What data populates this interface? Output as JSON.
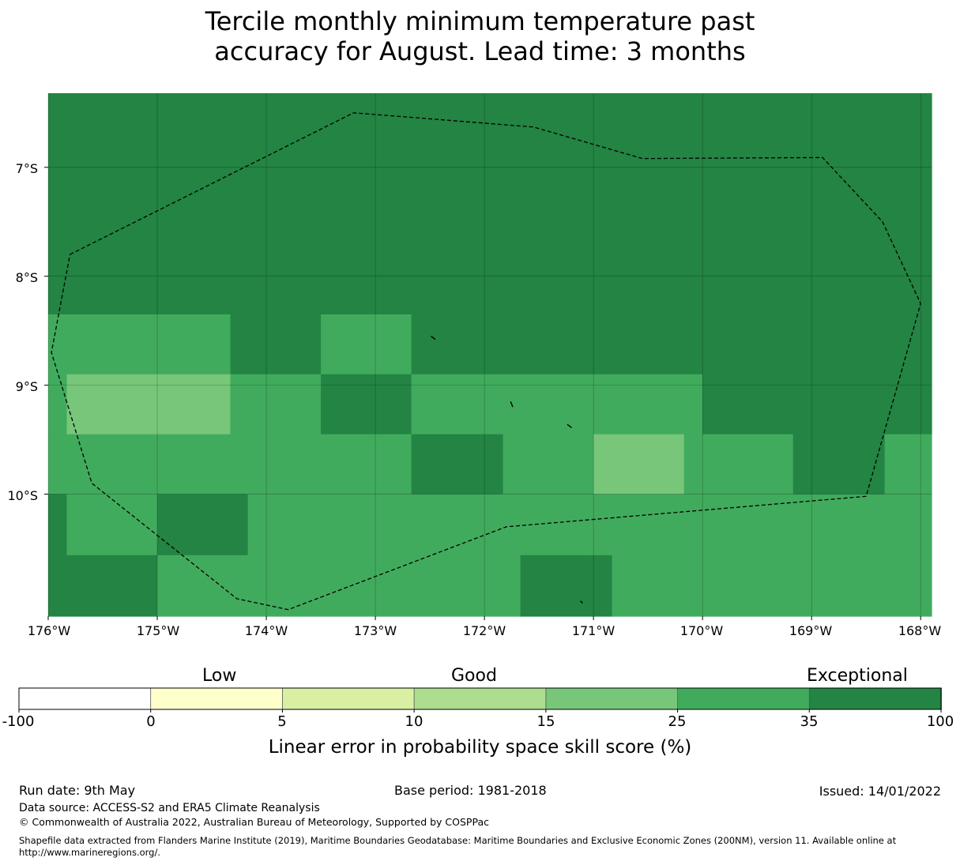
{
  "title": {
    "line1": "Tercile monthly minimum temperature past",
    "line2": "accuracy for August. Lead time: 3 months"
  },
  "map": {
    "lat_labels": [
      "7°S",
      "8°S",
      "9°S",
      "10°S"
    ],
    "lon_labels": [
      "176°W",
      "175°W",
      "174°W",
      "173°W",
      "172°W",
      "171°W",
      "170°W",
      "169°W",
      "168°W"
    ],
    "lat_range": [
      -11.12,
      -6.32
    ],
    "lon_range": [
      -176.0,
      -167.9
    ],
    "gridlines": true,
    "cells": [
      {
        "lon": [
          -176.0,
          -167.9
        ],
        "lat": [
          -8.35,
          -6.32
        ],
        "class": 6
      },
      {
        "lon": [
          -176.0,
          -174.33
        ],
        "lat": [
          -8.9,
          -8.35
        ],
        "class": 5
      },
      {
        "lon": [
          -174.33,
          -173.5
        ],
        "lat": [
          -8.9,
          -8.35
        ],
        "class": 6
      },
      {
        "lon": [
          -173.5,
          -172.67
        ],
        "lat": [
          -8.9,
          -8.35
        ],
        "class": 5
      },
      {
        "lon": [
          -172.67,
          -167.9
        ],
        "lat": [
          -8.9,
          -8.35
        ],
        "class": 6
      },
      {
        "lon": [
          -176.0,
          -175.83
        ],
        "lat": [
          -9.45,
          -8.9
        ],
        "class": 5
      },
      {
        "lon": [
          -175.83,
          -174.33
        ],
        "lat": [
          -9.45,
          -8.9
        ],
        "class": 4
      },
      {
        "lon": [
          -174.33,
          -173.5
        ],
        "lat": [
          -9.45,
          -8.9
        ],
        "class": 5
      },
      {
        "lon": [
          -173.5,
          -172.67
        ],
        "lat": [
          -9.45,
          -8.9
        ],
        "class": 6
      },
      {
        "lon": [
          -172.67,
          -170.0
        ],
        "lat": [
          -9.45,
          -8.9
        ],
        "class": 5
      },
      {
        "lon": [
          -170.0,
          -167.9
        ],
        "lat": [
          -9.45,
          -8.9
        ],
        "class": 6
      },
      {
        "lon": [
          -176.0,
          -172.67
        ],
        "lat": [
          -10.0,
          -9.45
        ],
        "class": 5
      },
      {
        "lon": [
          -172.67,
          -171.83
        ],
        "lat": [
          -10.0,
          -9.45
        ],
        "class": 6
      },
      {
        "lon": [
          -171.83,
          -171.0
        ],
        "lat": [
          -10.0,
          -9.45
        ],
        "class": 5
      },
      {
        "lon": [
          -171.0,
          -170.17
        ],
        "lat": [
          -10.0,
          -9.45
        ],
        "class": 4
      },
      {
        "lon": [
          -170.17,
          -169.17
        ],
        "lat": [
          -10.0,
          -9.45
        ],
        "class": 5
      },
      {
        "lon": [
          -169.17,
          -168.33
        ],
        "lat": [
          -10.0,
          -9.45
        ],
        "class": 6
      },
      {
        "lon": [
          -168.33,
          -167.9
        ],
        "lat": [
          -10.0,
          -9.45
        ],
        "class": 5
      },
      {
        "lon": [
          -176.0,
          -175.83
        ],
        "lat": [
          -10.56,
          -10.0
        ],
        "class": 6
      },
      {
        "lon": [
          -175.83,
          -175.0
        ],
        "lat": [
          -10.56,
          -10.0
        ],
        "class": 5
      },
      {
        "lon": [
          -175.0,
          -174.17
        ],
        "lat": [
          -10.56,
          -10.0
        ],
        "class": 6
      },
      {
        "lon": [
          -174.17,
          -167.9
        ],
        "lat": [
          -10.56,
          -10.0
        ],
        "class": 5
      },
      {
        "lon": [
          -176.0,
          -175.0
        ],
        "lat": [
          -11.12,
          -10.56
        ],
        "class": 6
      },
      {
        "lon": [
          -175.0,
          -171.67
        ],
        "lat": [
          -11.12,
          -10.56
        ],
        "class": 5
      },
      {
        "lon": [
          -171.67,
          -170.83
        ],
        "lat": [
          -11.12,
          -10.56
        ],
        "class": 6
      },
      {
        "lon": [
          -170.83,
          -167.9
        ],
        "lat": [
          -11.12,
          -10.56
        ],
        "class": 5
      }
    ],
    "boundary": [
      [
        -175.8,
        -7.8
      ],
      [
        -173.2,
        -6.5
      ],
      [
        -171.55,
        -6.63
      ],
      [
        -170.55,
        -6.92
      ],
      [
        -168.9,
        -6.91
      ],
      [
        -168.35,
        -7.5
      ],
      [
        -168.0,
        -8.25
      ],
      [
        -168.5,
        -10.02
      ],
      [
        -171.8,
        -10.3
      ],
      [
        -173.8,
        -11.06
      ],
      [
        -174.27,
        -10.96
      ],
      [
        -175.6,
        -9.9
      ],
      [
        -175.97,
        -8.7
      ],
      [
        -175.8,
        -7.8
      ]
    ],
    "islands": [
      [
        [
          -172.49,
          -8.55
        ],
        [
          -172.45,
          -8.58
        ]
      ],
      [
        [
          -171.76,
          -9.15
        ],
        [
          -171.74,
          -9.2
        ]
      ],
      [
        [
          -171.24,
          -9.36
        ],
        [
          -171.2,
          -9.39
        ]
      ],
      [
        [
          -171.12,
          -10.98
        ],
        [
          -171.1,
          -11.0
        ]
      ]
    ]
  },
  "colorbar": {
    "categories": [
      "Low",
      "Good",
      "Exceptional"
    ],
    "ticks": [
      "-100",
      "0",
      "5",
      "10",
      "15",
      "25",
      "35",
      "100"
    ],
    "colors": [
      "#ffffff",
      "#ffffcc",
      "#d9f0a3",
      "#addd8e",
      "#78c679",
      "#41ab5d",
      "#238443"
    ],
    "label": "Linear error in probability space skill score (%)"
  },
  "footer": {
    "run_date": "Run date: 9th May",
    "base_period": "Base period: 1981-2018",
    "issued": "Issued: 14/01/2022",
    "data_source": "Data source: ACCESS-S2 and ERA5 Climate Reanalysis",
    "copyright": "© Commonwealth of Australia 2022, Australian Bureau of Meteorology, Supported by COSPPac",
    "shapefile": "Shapefile data extracted from Flanders Marine Institute (2019), Maritime Boundaries Geodatabase: Maritime Boundaries and Exclusive Economic Zones (200NM), version 11. Available online at http://www.marineregions.org/."
  }
}
